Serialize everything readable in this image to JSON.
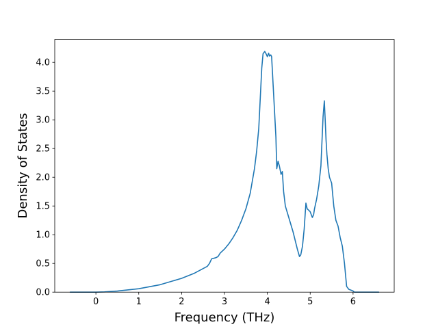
{
  "chart_data": {
    "type": "line",
    "title": "",
    "xlabel": "Frequency (THz)",
    "ylabel": "Density of States",
    "xlim": [
      -0.96,
      6.96
    ],
    "ylim": [
      0.0,
      4.4
    ],
    "x_ticks": [
      0,
      1,
      2,
      3,
      4,
      5,
      6
    ],
    "x_tick_labels": [
      "0",
      "1",
      "2",
      "3",
      "4",
      "5",
      "6"
    ],
    "y_ticks": [
      0.0,
      0.5,
      1.0,
      1.5,
      2.0,
      2.5,
      3.0,
      3.5,
      4.0
    ],
    "y_tick_labels": [
      "0.0",
      "0.5",
      "1.0",
      "1.5",
      "2.0",
      "2.5",
      "3.0",
      "3.5",
      "4.0"
    ],
    "grid": false,
    "legend": "none",
    "series": [
      {
        "color": "#1f77b4",
        "x": [
          -0.6,
          0.0,
          0.2,
          0.5,
          1.0,
          1.5,
          2.0,
          2.3,
          2.6,
          2.65,
          2.7,
          2.8,
          2.85,
          2.9,
          3.0,
          3.1,
          3.2,
          3.3,
          3.4,
          3.5,
          3.6,
          3.7,
          3.75,
          3.8,
          3.83,
          3.87,
          3.9,
          3.94,
          3.97,
          4.0,
          4.03,
          4.05,
          4.08,
          4.1,
          4.15,
          4.2,
          4.22,
          4.25,
          4.28,
          4.32,
          4.35,
          4.38,
          4.42,
          4.5,
          4.6,
          4.7,
          4.75,
          4.78,
          4.82,
          4.86,
          4.9,
          4.93,
          4.96,
          5.0,
          5.05,
          5.08,
          5.1,
          5.15,
          5.2,
          5.25,
          5.3,
          5.33,
          5.35,
          5.37,
          5.39,
          5.42,
          5.45,
          5.5,
          5.55,
          5.6,
          5.65,
          5.7,
          5.75,
          5.8,
          5.85,
          5.9,
          6.0,
          6.03,
          6.6
        ],
        "y": [
          0.0,
          0.0,
          0.005,
          0.02,
          0.06,
          0.13,
          0.24,
          0.33,
          0.45,
          0.5,
          0.58,
          0.6,
          0.62,
          0.68,
          0.75,
          0.84,
          0.95,
          1.08,
          1.25,
          1.45,
          1.72,
          2.15,
          2.45,
          2.85,
          3.3,
          3.9,
          4.15,
          4.19,
          4.15,
          4.1,
          4.16,
          4.11,
          4.13,
          4.1,
          3.4,
          2.7,
          2.15,
          2.28,
          2.2,
          2.05,
          2.1,
          1.75,
          1.5,
          1.3,
          1.05,
          0.75,
          0.62,
          0.65,
          0.8,
          1.1,
          1.55,
          1.45,
          1.43,
          1.4,
          1.3,
          1.35,
          1.45,
          1.62,
          1.85,
          2.2,
          3.05,
          3.33,
          3.0,
          2.65,
          2.4,
          2.15,
          2.0,
          1.9,
          1.5,
          1.25,
          1.15,
          0.95,
          0.8,
          0.5,
          0.1,
          0.05,
          0.02,
          0.0,
          0.0
        ]
      }
    ]
  }
}
